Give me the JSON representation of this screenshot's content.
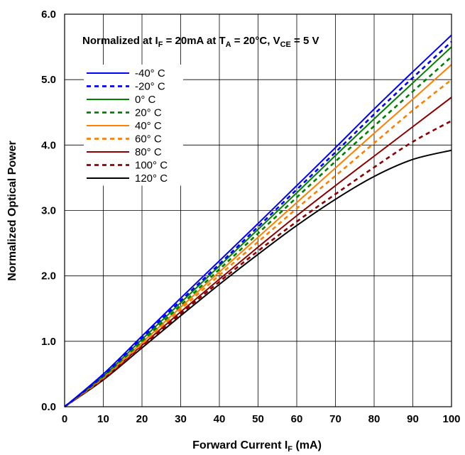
{
  "chart_data": {
    "type": "line",
    "title": "",
    "annotation": {
      "part1": "Normalized at I",
      "sub1": "F",
      "part2": " = 20mA at T",
      "sub2": "A",
      "part3": " = 20°C, V",
      "sub3": "CE",
      "part4": " = 5 V"
    },
    "xlabel": {
      "main": "Forward Current I",
      "sub": "F",
      "unit": " (mA)"
    },
    "ylabel": "Normalized Optical Power",
    "xlim": [
      0,
      100
    ],
    "ylim": [
      0,
      6
    ],
    "x_ticks": [
      "0",
      "10",
      "20",
      "30",
      "40",
      "50",
      "60",
      "70",
      "80",
      "90",
      "100"
    ],
    "y_ticks": [
      "0.0",
      "1.0",
      "2.0",
      "3.0",
      "4.0",
      "5.0",
      "6.0"
    ],
    "grid": true,
    "legend_position": "top-left",
    "x": [
      0,
      10,
      20,
      30,
      40,
      50,
      60,
      70,
      80,
      90,
      100
    ],
    "series": [
      {
        "name": "-40° C",
        "color": "#0000ff",
        "dashed": false,
        "values": [
          0.0,
          0.5,
          1.08,
          1.66,
          2.23,
          2.8,
          3.38,
          3.96,
          4.55,
          5.12,
          5.68
        ]
      },
      {
        "name": "-20° C",
        "color": "#0000ff",
        "dashed": true,
        "values": [
          0.0,
          0.48,
          1.05,
          1.62,
          2.18,
          2.75,
          3.32,
          3.89,
          4.47,
          5.03,
          5.58
        ]
      },
      {
        "name": "0° C",
        "color": "#008000",
        "dashed": false,
        "values": [
          0.0,
          0.47,
          1.03,
          1.59,
          2.15,
          2.71,
          3.27,
          3.84,
          4.4,
          4.95,
          5.5
        ]
      },
      {
        "name": "20° C",
        "color": "#008000",
        "dashed": true,
        "values": [
          0.0,
          0.46,
          1.0,
          1.55,
          2.1,
          2.65,
          3.2,
          3.75,
          4.29,
          4.82,
          5.35
        ]
      },
      {
        "name": "40° C",
        "color": "#ff7f00",
        "dashed": false,
        "values": [
          0.0,
          0.45,
          0.98,
          1.52,
          2.06,
          2.59,
          3.12,
          3.65,
          4.18,
          4.7,
          5.23
        ]
      },
      {
        "name": "60° C",
        "color": "#ff7f00",
        "dashed": true,
        "values": [
          0.0,
          0.44,
          0.96,
          1.49,
          2.01,
          2.52,
          3.03,
          3.53,
          4.03,
          4.53,
          5.0
        ]
      },
      {
        "name": "80° C",
        "color": "#8b0000",
        "dashed": false,
        "values": [
          0.0,
          0.43,
          0.94,
          1.45,
          1.95,
          2.44,
          2.92,
          3.38,
          3.83,
          4.28,
          4.73
        ]
      },
      {
        "name": "100° C",
        "color": "#8b0000",
        "dashed": true,
        "values": [
          0.0,
          0.42,
          0.92,
          1.42,
          1.91,
          2.38,
          2.83,
          3.25,
          3.66,
          4.05,
          4.37
        ]
      },
      {
        "name": "120° C",
        "color": "#000000",
        "dashed": false,
        "values": [
          0.0,
          0.41,
          0.9,
          1.39,
          1.87,
          2.33,
          2.77,
          3.17,
          3.52,
          3.78,
          3.92
        ]
      }
    ]
  }
}
